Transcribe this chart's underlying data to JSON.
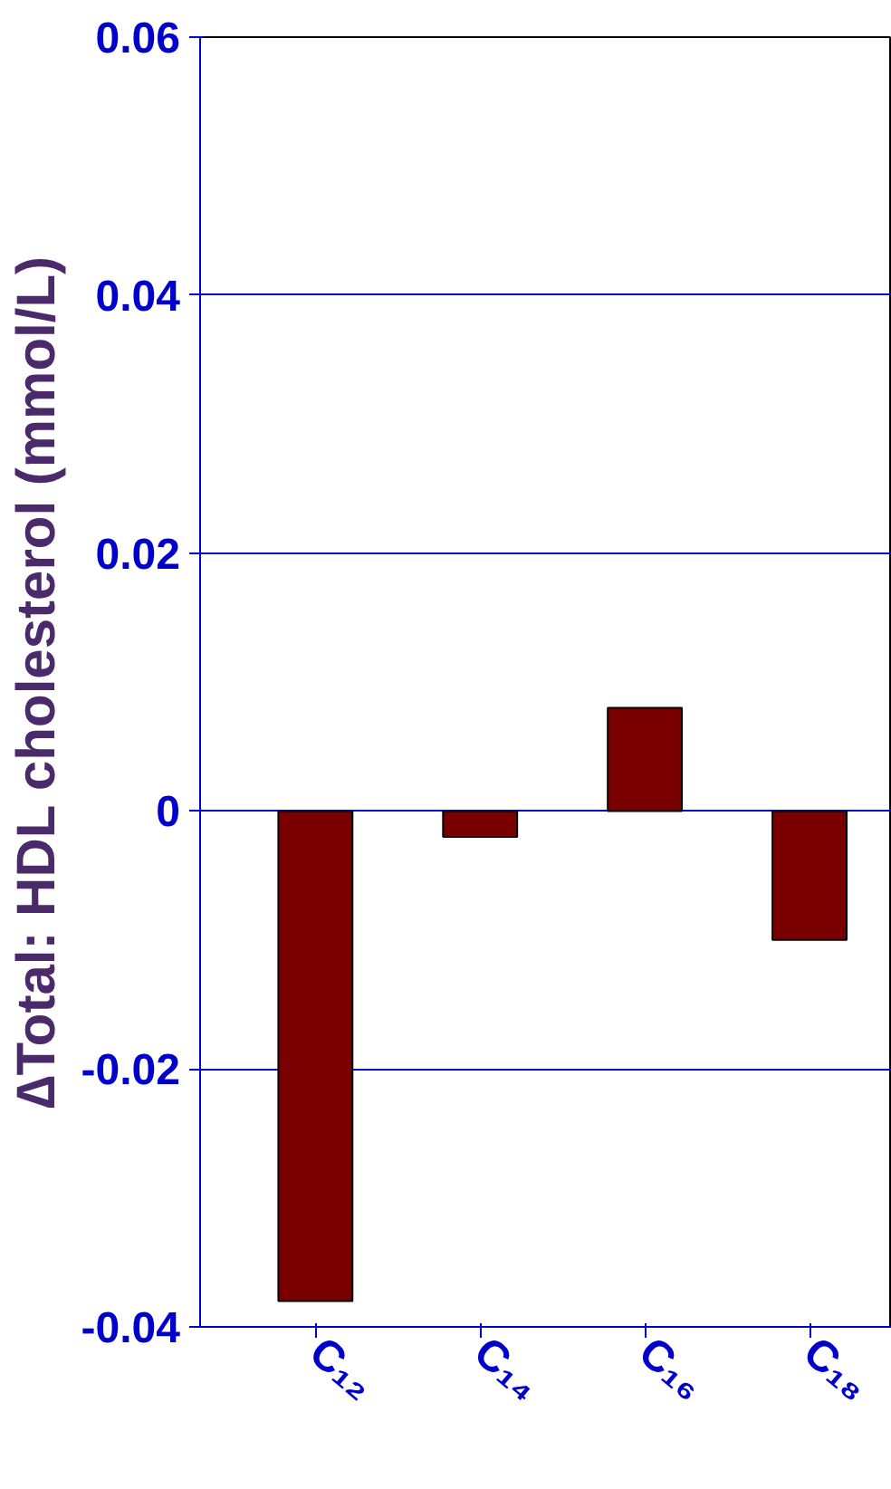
{
  "chart_data": {
    "type": "bar",
    "ylabel": "∆Total: HDL cholesterol (mmol/L)",
    "categories": [
      "C₁₂",
      "C₁₄",
      "C₁₆",
      "C₁₈"
    ],
    "values": [
      -0.038,
      -0.002,
      0.008,
      -0.01
    ],
    "color": "#7a0000",
    "ylim": [
      -0.04,
      0.06
    ],
    "yticks": [
      -0.04,
      -0.02,
      0,
      0.02,
      0.04,
      0.06
    ],
    "grid": "y"
  }
}
